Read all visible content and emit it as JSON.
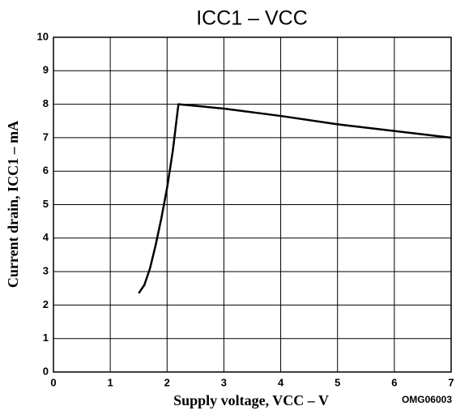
{
  "chart_data": {
    "type": "line",
    "title": "ICC1 – VCC",
    "xlabel": "Supply voltage,  VCC – V",
    "ylabel": "Current drain,  ICC1 – mA",
    "annotation": "OMG06003",
    "series": [
      {
        "name": "ICC1",
        "color": "#000000",
        "x": [
          1.5,
          1.6,
          1.7,
          1.8,
          1.9,
          2.0,
          2.1,
          2.2,
          3,
          4,
          5,
          6,
          7
        ],
        "values": [
          2.35,
          2.6,
          3.1,
          3.8,
          4.6,
          5.5,
          6.6,
          8.0,
          7.87,
          7.65,
          7.4,
          7.2,
          7.0
        ]
      }
    ],
    "xlim": [
      0,
      7
    ],
    "xticks": [
      0,
      1,
      2,
      3,
      4,
      5,
      6,
      7
    ],
    "ylim": [
      0,
      10
    ],
    "yticks": [
      0,
      1,
      2,
      3,
      4,
      5,
      6,
      7,
      8,
      9,
      10
    ],
    "grid": true
  }
}
